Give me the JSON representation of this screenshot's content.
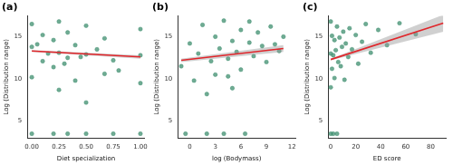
{
  "chart_data": [
    {
      "type": "scatter",
      "title": "(a)",
      "x_label": "Diet specialization",
      "y_label": "Log (Distribution range)",
      "color": "#3f8f6f",
      "grid": false,
      "x": [
        0,
        0,
        0,
        0,
        0.1,
        0.1,
        0.2,
        0.2,
        0.2,
        0.25,
        0.25,
        0.25,
        0.33,
        0.33,
        0.33,
        0.4,
        0.4,
        0.5,
        0.5,
        0.5,
        0.5,
        0.6,
        0.67,
        0.67,
        0.75,
        0.75,
        0.8,
        1,
        1,
        1,
        1,
        0.05,
        0.15,
        0.3,
        0.45
      ],
      "values": [
        3.5,
        10.2,
        13.8,
        16.5,
        12.1,
        15.2,
        3.5,
        11.4,
        14.6,
        8.7,
        13.1,
        16.8,
        3.5,
        12.5,
        15.5,
        9.8,
        14.0,
        3.5,
        7.2,
        12.9,
        16.3,
        13.5,
        10.6,
        14.8,
        3.5,
        12.2,
        11.0,
        3.5,
        9.5,
        12.8,
        15.9,
        14.1,
        13.0,
        11.8,
        12.6
      ],
      "trend_line": {
        "x": [
          0,
          1
        ],
        "values": [
          13.3,
          12.6
        ],
        "lower": [
          13.2,
          12.4
        ],
        "upper": [
          13.4,
          12.8
        ],
        "color": "#e0262b"
      },
      "xlim": [
        -0.04,
        1.04
      ],
      "xticks": [
        {
          "value": 0,
          "label": "0.00"
        },
        {
          "value": 0.25,
          "label": "0.25"
        },
        {
          "value": 0.5,
          "label": "0.50"
        },
        {
          "value": 0.75,
          "label": "0.75"
        },
        {
          "value": 1,
          "label": "1.00"
        }
      ],
      "ylim": [
        3,
        17.5
      ],
      "yticks": [
        5,
        10,
        15
      ]
    },
    {
      "type": "scatter",
      "title": "(b)",
      "x_label": "log (Bodymass)",
      "y_label": "Log (Distribution range)",
      "color": "#3f8f6f",
      "grid": false,
      "x": [
        -1,
        -0.5,
        0,
        0.5,
        1,
        1.5,
        2,
        2.5,
        3,
        3,
        3.5,
        4,
        4,
        4.5,
        5,
        5,
        5.5,
        6,
        6,
        6.5,
        7,
        7.5,
        8,
        8.5,
        9,
        9.5,
        10,
        10.5,
        11,
        2,
        4.5,
        7
      ],
      "values": [
        11.5,
        3.5,
        14.2,
        9.8,
        13.0,
        16.4,
        3.5,
        12.1,
        15.0,
        10.5,
        13.6,
        3.5,
        16.9,
        12.4,
        14.5,
        8.9,
        13.2,
        15.8,
        11.1,
        3.5,
        14.3,
        12.7,
        15.5,
        13.9,
        12.0,
        16.2,
        14.1,
        13.3,
        15.0,
        8.2,
        10.3,
        16.8
      ],
      "trend_line": {
        "x": [
          -1,
          11
        ],
        "values": [
          12.2,
          13.6
        ],
        "lower": [
          12.0,
          13.2
        ],
        "upper": [
          12.4,
          14.0
        ],
        "color": "#e0262b"
      },
      "xlim": [
        -1.4,
        12.4
      ],
      "xticks": [
        0,
        3,
        6,
        9,
        12
      ],
      "ylim": [
        3,
        17.5
      ],
      "yticks": [
        5,
        10,
        15
      ]
    },
    {
      "type": "scatter",
      "title": "(c)",
      "x_label": "ED score",
      "y_label": "Log (Distribution range)",
      "color": "#3f8f6f",
      "grid": false,
      "x": [
        0,
        0,
        0,
        0,
        1,
        1,
        2,
        2,
        3,
        3,
        4,
        5,
        5,
        6,
        7,
        8,
        9,
        10,
        11,
        12,
        14,
        15,
        17,
        20,
        22,
        25,
        28,
        32,
        38,
        45,
        55,
        68
      ],
      "values": [
        3.5,
        9.0,
        13.0,
        16.8,
        11.2,
        15.1,
        3.5,
        12.8,
        10.1,
        14.6,
        13.4,
        3.5,
        16.2,
        12.0,
        14.9,
        11.5,
        13.8,
        15.6,
        9.9,
        14.2,
        12.6,
        16.0,
        13.5,
        15.2,
        11.8,
        14.4,
        16.5,
        13.1,
        15.8,
        14.0,
        16.6,
        15.3
      ],
      "trend_line": {
        "x": [
          0,
          90
        ],
        "values": [
          12.3,
          16.6
        ],
        "lower": [
          12.2,
          15.6
        ],
        "upper": [
          12.4,
          17.6
        ],
        "color": "#e0262b"
      },
      "xlim": [
        -2,
        92
      ],
      "xticks": [
        0,
        20,
        40,
        60,
        80
      ],
      "ylim": [
        3,
        17.5
      ],
      "yticks": [
        5,
        10,
        15
      ]
    }
  ]
}
